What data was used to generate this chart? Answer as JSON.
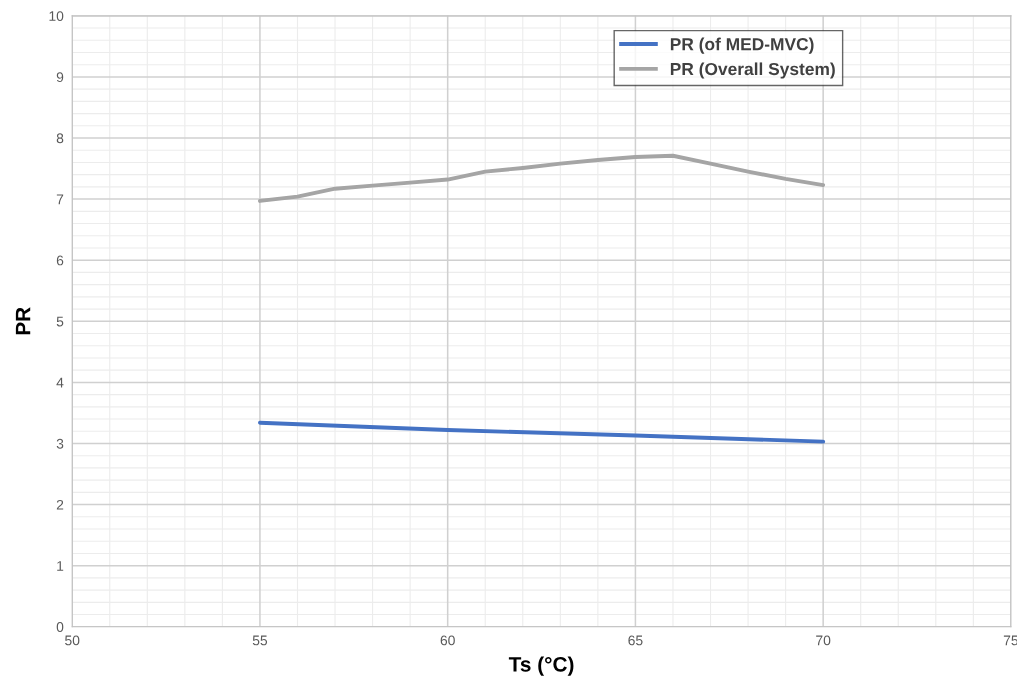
{
  "chart_data": {
    "type": "line",
    "xlabel": "Ts (°C)",
    "ylabel": "PR",
    "xlim": [
      50,
      75
    ],
    "xticks": [
      50,
      55,
      60,
      65,
      70,
      75
    ],
    "ylim": [
      0,
      10
    ],
    "yticks": [
      0,
      1,
      2,
      3,
      4,
      5,
      6,
      7,
      8,
      9,
      10
    ],
    "grid": true,
    "legend": "top right",
    "marker": "none",
    "line_style": "solid",
    "series": [
      {
        "name": "PR (of MED-MVC)",
        "color": "#4472c4",
        "x": [
          55,
          60,
          65,
          70
        ],
        "values": [
          3.34,
          3.22,
          3.13,
          3.03
        ]
      },
      {
        "name": "PR (Overall System)",
        "color": "#a5a5a5",
        "x": [
          55,
          56,
          57,
          58,
          59,
          60,
          61,
          62,
          63,
          64,
          65,
          66,
          67,
          68,
          69,
          70
        ],
        "values": [
          6.97,
          7.04,
          7.17,
          7.22,
          7.27,
          7.32,
          7.45,
          7.51,
          7.58,
          7.64,
          7.69,
          7.71,
          7.58,
          7.45,
          7.33,
          7.23
        ]
      }
    ]
  }
}
